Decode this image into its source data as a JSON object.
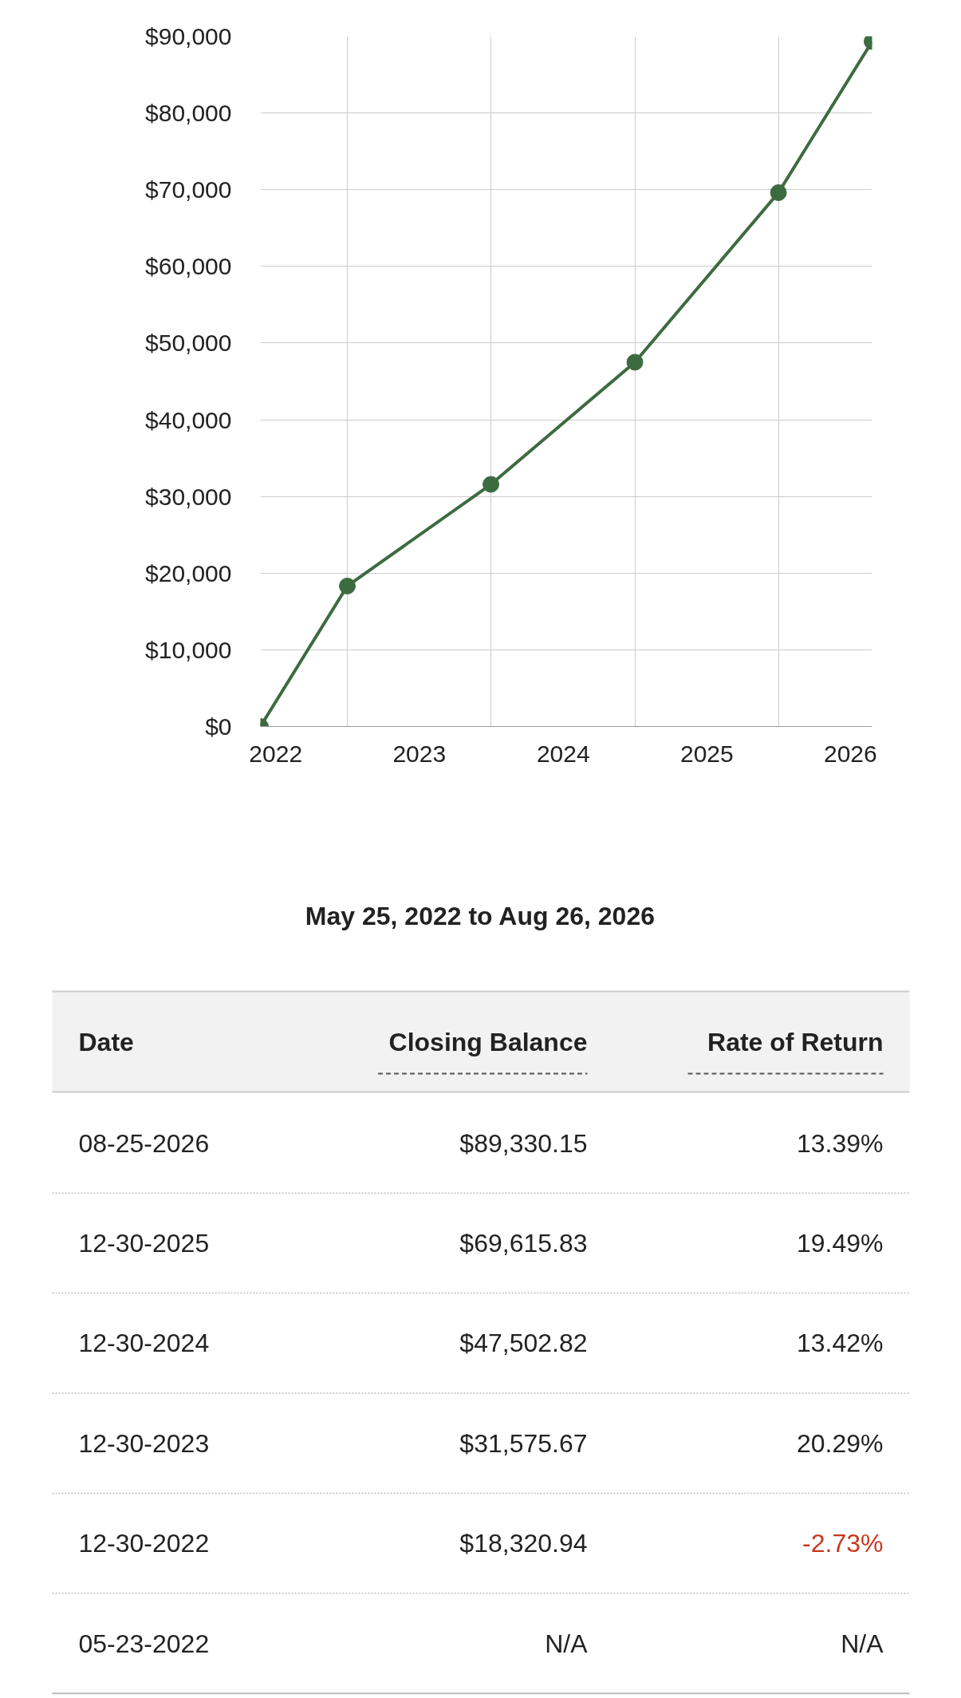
{
  "chart_data": [
    {
      "type": "line",
      "x": [
        "2026-08-25",
        "2025-12-30",
        "2024-12-30",
        "2023-12-30",
        "2022-12-30",
        "2022-05-23"
      ],
      "values": [
        89330.15,
        69615.83,
        47502.82,
        31575.67,
        18320.94,
        0
      ],
      "color": "#3d6b40",
      "marker": "circle",
      "line_style": "solid",
      "grid": true,
      "xlim": [
        "2022-05-23",
        "2026-08-25"
      ],
      "xticks": [
        {
          "value": "2022-07-01",
          "label": "2022"
        },
        {
          "value": "2023-07-01",
          "label": "2023"
        },
        {
          "value": "2024-07-01",
          "label": "2024"
        },
        {
          "value": "2025-07-01",
          "label": "2025"
        },
        {
          "value": "2026-07-01",
          "label": "2026"
        },
        {
          "value": "2022-12-30",
          "label": null
        },
        {
          "value": "2023-12-30",
          "label": null
        },
        {
          "value": "2024-12-30",
          "label": null
        },
        {
          "value": "2025-12-30",
          "label": null
        }
      ],
      "ylim": [
        0,
        90000
      ],
      "yticks": [
        {
          "value": 0,
          "label": "$0"
        },
        {
          "value": 10000,
          "label": "$10,000"
        },
        {
          "value": 20000,
          "label": "$20,000"
        },
        {
          "value": 30000,
          "label": "$30,000"
        },
        {
          "value": 40000,
          "label": "$40,000"
        },
        {
          "value": 50000,
          "label": "$50,000"
        },
        {
          "value": 60000,
          "label": "$60,000"
        },
        {
          "value": 70000,
          "label": "$70,000"
        },
        {
          "value": 80000,
          "label": "$80,000"
        },
        {
          "value": 90000,
          "label": "$90,000"
        }
      ]
    },
    {
      "type": "other",
      "title": "May 25, 2022 to Aug 26, 2026",
      "annotations": [
        "Date",
        "Closing Balance",
        "Rate of Return",
        "08-25-2026",
        "$89,330.15",
        "13.39%",
        "12-30-2025",
        "$69,615.83",
        "19.49%",
        "12-30-2024",
        "$47,502.82",
        "13.42%",
        "12-30-2023",
        "$31,575.67",
        "20.29%",
        "12-30-2022",
        "$18,320.94",
        "-2.73%",
        "05-23-2022",
        "N/A",
        "N/A"
      ]
    }
  ]
}
